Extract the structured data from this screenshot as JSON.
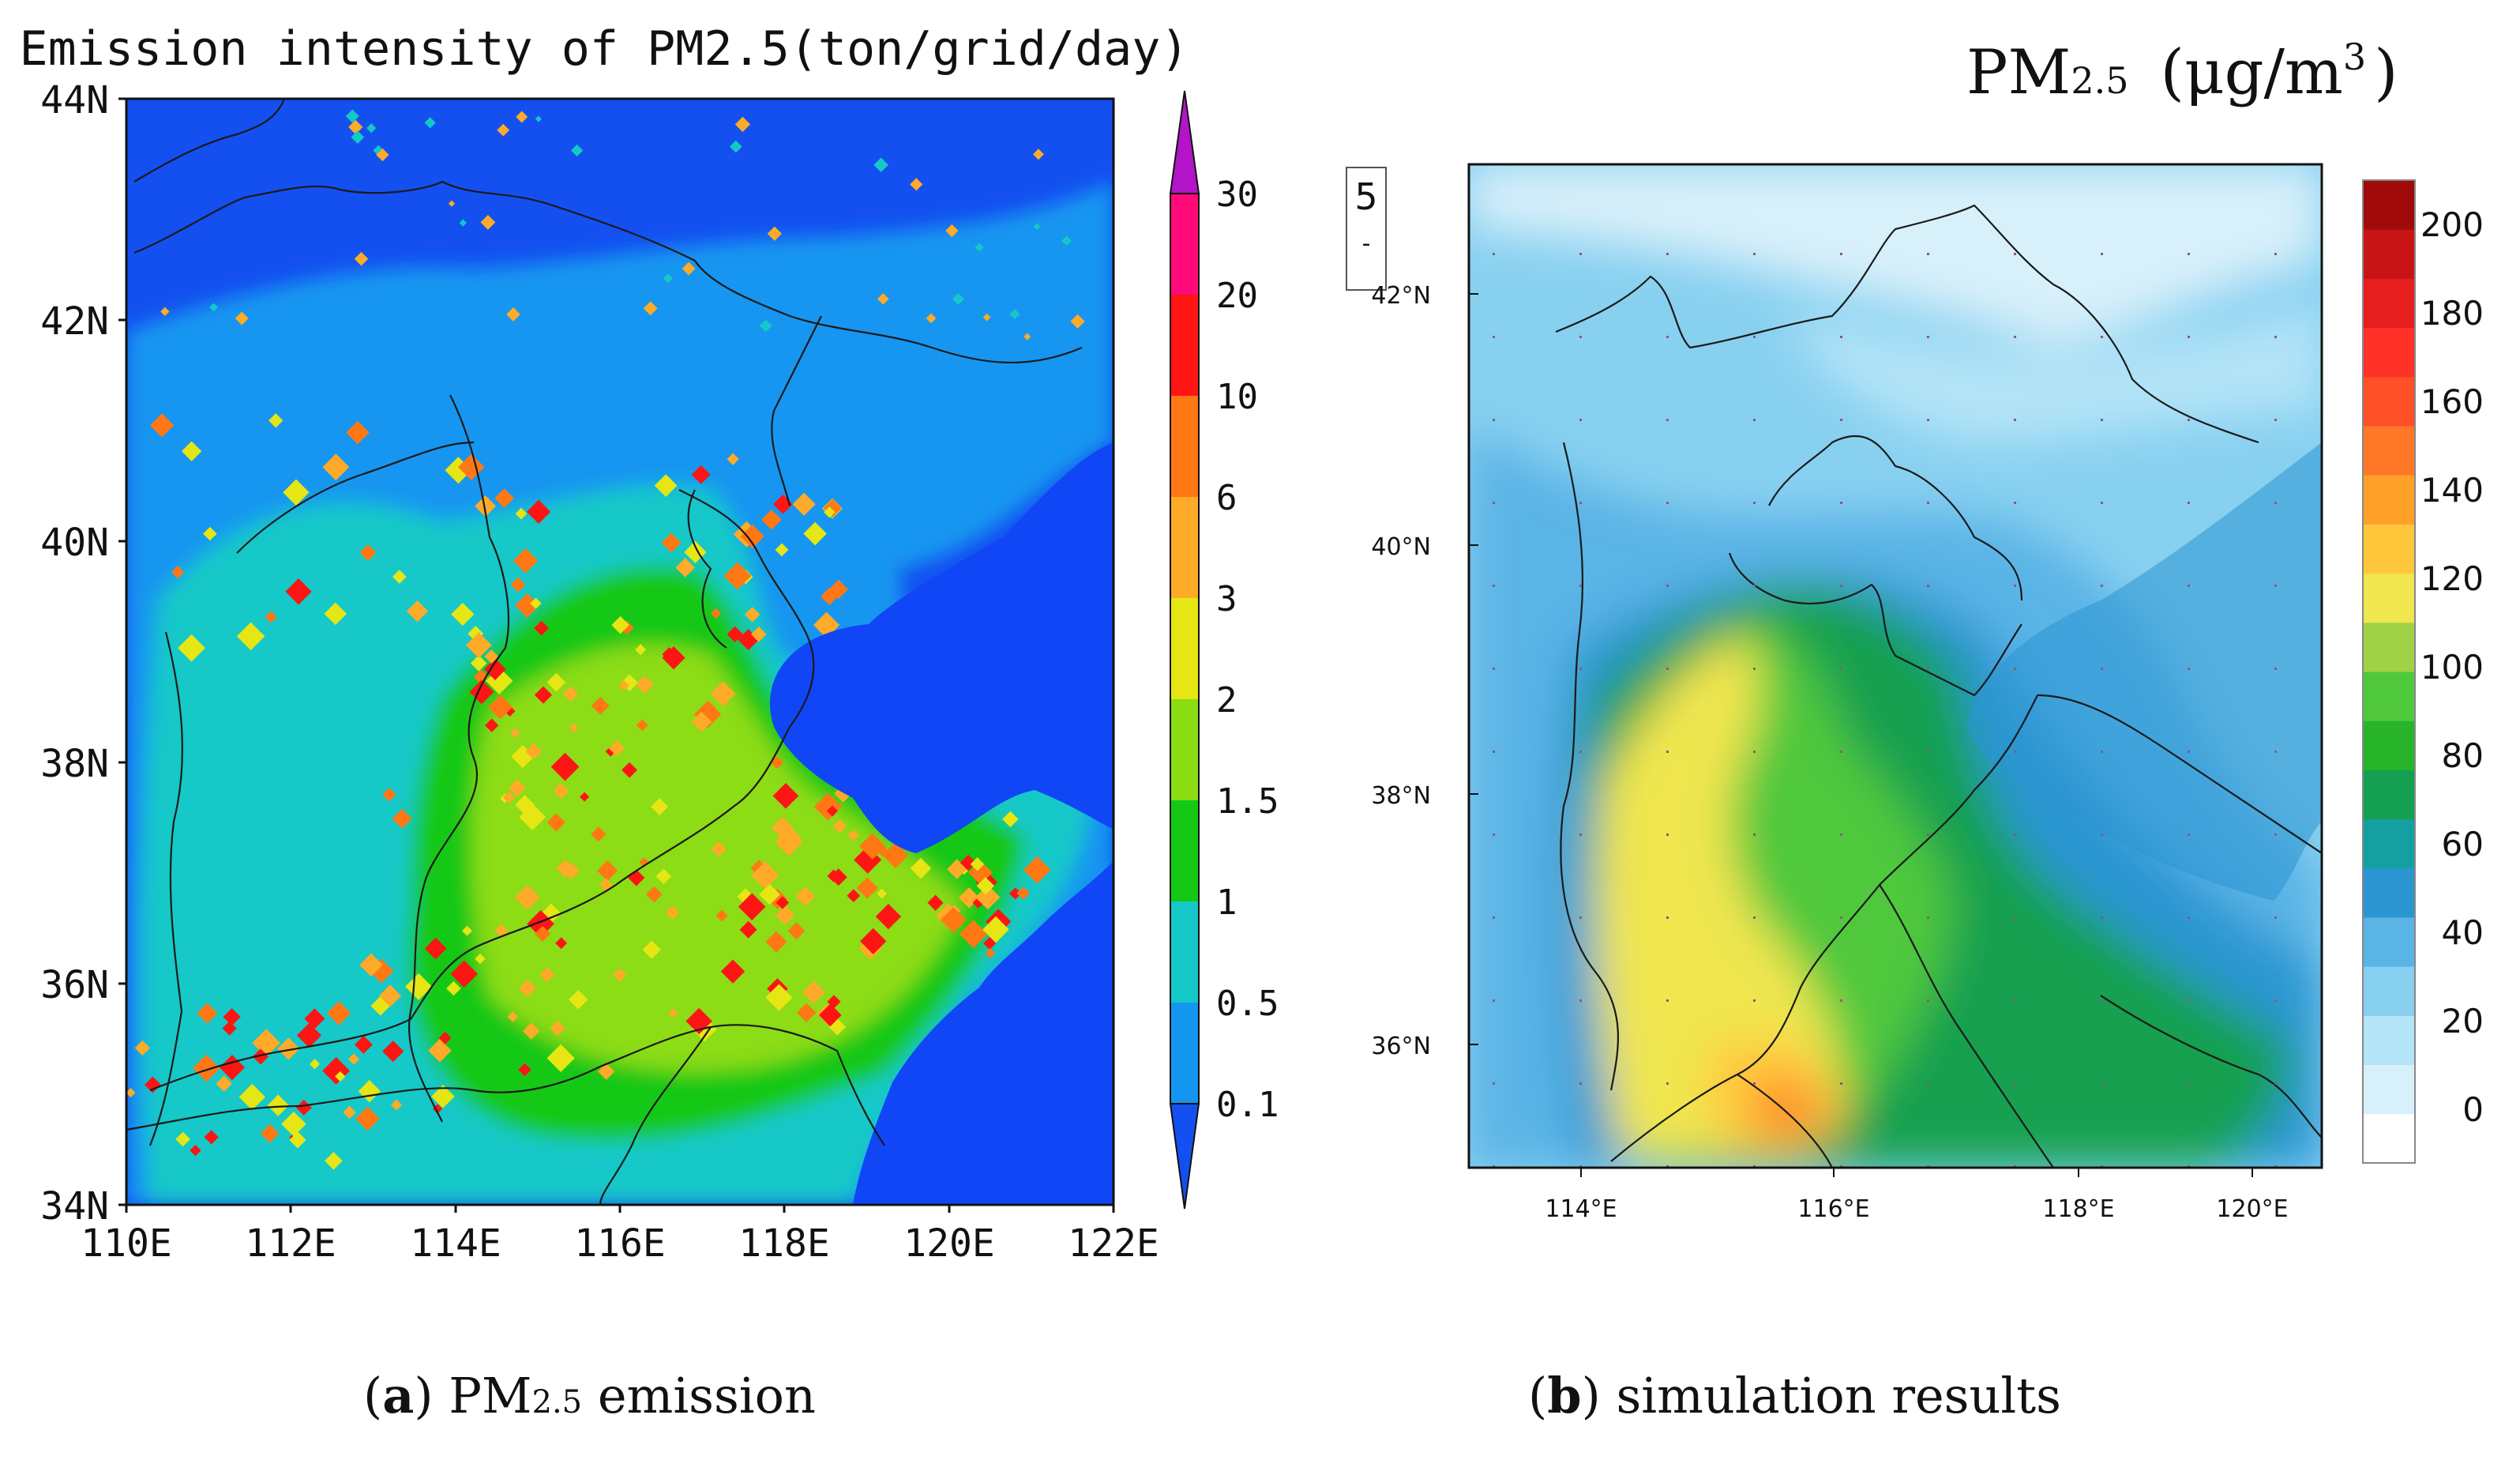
{
  "panel_a": {
    "title": "Emission intensity of PM2.5(ton/grid/day)",
    "lat_labels": [
      "44N",
      "42N",
      "40N",
      "38N",
      "36N",
      "34N"
    ],
    "lon_labels": [
      "110E",
      "112E",
      "114E",
      "116E",
      "118E",
      "120E",
      "122E"
    ],
    "legend_values": [
      "30",
      "20",
      "10",
      "6",
      "3",
      "2",
      "1.5",
      "1",
      "0.5",
      "0.1"
    ],
    "colors": {
      "background": "#1450f0",
      "sea": "#1046f5",
      "levels": [
        "#1450f0",
        "#1496f0",
        "#14c8c8",
        "#14c814",
        "#8cdc14",
        "#e6e614",
        "#ffaa28",
        "#ff7814",
        "#ff1414",
        "#ff0a78",
        "#b414c8"
      ]
    }
  },
  "panel_b": {
    "title_pre": "PM",
    "title_sub": "2.5",
    "title_post": "(μg/m",
    "title_sup": "3",
    "title_close": ")",
    "lat_labels": [
      "42°N",
      "40°N",
      "38°N",
      "36°N"
    ],
    "lon_labels": [
      "114°E",
      "116°E",
      "118°E",
      "120°E"
    ],
    "legend_values": [
      "200",
      "180",
      "160",
      "140",
      "120",
      "100",
      "80",
      "60",
      "40",
      "20",
      "0"
    ],
    "vector_ref": "5",
    "vector_ref_mark": "-",
    "colors": {
      "levels": [
        "#ffffff",
        "#d8f0fa",
        "#b4e4f8",
        "#88d0f0",
        "#5ab4e6",
        "#2c96d2",
        "#14a0a0",
        "#14a050",
        "#28b428",
        "#50c83c",
        "#a0d246",
        "#f0e650",
        "#ffc83c",
        "#ffa028",
        "#ff7828",
        "#ff5028",
        "#ff3228",
        "#e61e1e",
        "#c81414",
        "#a00a0a"
      ]
    }
  },
  "captions": {
    "a_label": "a",
    "a_text_pre": " PM",
    "a_text_sub": "2.5",
    "a_text_post": " emission",
    "b_label": "b",
    "b_text": " simulation results"
  }
}
